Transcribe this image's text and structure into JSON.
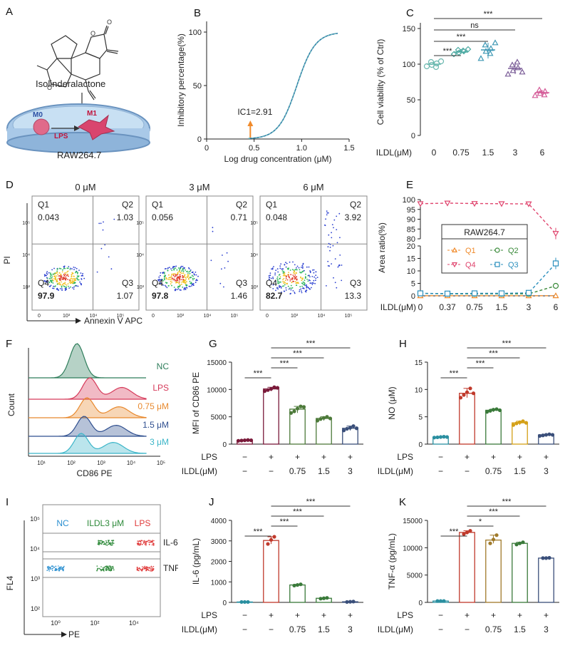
{
  "panel_labels": {
    "A": "A",
    "B": "B",
    "C": "C",
    "D": "D",
    "E": "E",
    "F": "F",
    "G": "G",
    "H": "H",
    "I": "I",
    "J": "J",
    "K": "K"
  },
  "panelA": {
    "compound": "Isolinderalactone",
    "m0": "M0",
    "m1": "M1",
    "lps": "LPS",
    "cell_line": "RAW264.7"
  },
  "chart_data": [
    {
      "id": "B",
      "type": "line",
      "xlabel": "Log drug concentration (μM)",
      "ylabel": "Inhibitory percentage(%)",
      "xlim": [
        0,
        1.5
      ],
      "ylim": [
        0,
        110
      ],
      "xticks": [
        "0",
        "0.5",
        "1.0",
        "1.5"
      ],
      "yticks": [
        "0",
        "50",
        "100"
      ],
      "annotation": "IC1=2.91",
      "annotation_x": 0.46,
      "curve": {
        "bottom": 0,
        "top": 100,
        "logEC50": 0.95,
        "hill": 4.5,
        "x_start": 0.44,
        "x_end": 1.38
      }
    },
    {
      "id": "C",
      "type": "scatter",
      "ylabel": "Cell viability (% of Ctrl)",
      "ylim": [
        0,
        150
      ],
      "yticks": [
        "0",
        "50",
        "100",
        "150"
      ],
      "row_label": "ILDL(μM)",
      "categories": [
        "0",
        "0.75",
        "1.5",
        "3",
        "6"
      ],
      "means": [
        100,
        117,
        120,
        94,
        60
      ],
      "points": [
        [
          97,
          99,
          101,
          103,
          96,
          104
        ],
        [
          114,
          116,
          118,
          120,
          119,
          121
        ],
        [
          108,
          118,
          122,
          127,
          115,
          130
        ],
        [
          86,
          91,
          95,
          99,
          103,
          89
        ],
        [
          56,
          59,
          62,
          64,
          57
        ]
      ],
      "colors": [
        "#6cb9b0",
        "#48a8a0",
        "#3d97b4",
        "#7a5c97",
        "#d45a97"
      ],
      "markers": [
        "circle",
        "diamond",
        "triangle",
        "triangle",
        "triangle"
      ],
      "sig": [
        {
          "from": 0,
          "to": 1,
          "label": "***"
        },
        {
          "from": 0,
          "to": 2,
          "label": "***"
        },
        {
          "from": 0,
          "to": 3,
          "label": "ns"
        },
        {
          "from": 0,
          "to": 4,
          "label": "***"
        }
      ]
    },
    {
      "id": "E",
      "type": "line",
      "ylabel": "Area ratio(%)",
      "row_label": "ILDL(μM)",
      "categories": [
        "0",
        "0.37",
        "0.75",
        "1.5",
        "3",
        "6"
      ],
      "yticks_low": [
        "0",
        "5",
        "10",
        "15",
        "20"
      ],
      "yticks_high": [
        "80",
        "85",
        "90",
        "95",
        "100"
      ],
      "legend_title": "RAW264.7",
      "series": [
        {
          "name": "Q1",
          "values": [
            0.05,
            0.05,
            0.05,
            0.05,
            0.05,
            0.05
          ],
          "color": "#f08a2b",
          "marker": "triangle"
        },
        {
          "name": "Q2",
          "values": [
            1.0,
            0.8,
            0.8,
            0.8,
            0.8,
            4.0
          ],
          "color": "#3a8a3a",
          "marker": "circle"
        },
        {
          "name": "Q4",
          "values": [
            97.9,
            98.2,
            98.0,
            97.9,
            97.8,
            82.7
          ],
          "color": "#e0456e",
          "marker": "triangle-down",
          "err": [
            0,
            0,
            0,
            0,
            0,
            3
          ]
        },
        {
          "name": "Q3",
          "values": [
            1.0,
            0.9,
            1.0,
            1.0,
            1.2,
            13.0
          ],
          "color": "#2a8fbd",
          "marker": "square",
          "err": [
            0,
            0,
            0,
            0,
            0,
            3
          ]
        }
      ]
    },
    {
      "id": "G",
      "type": "bar",
      "ylabel": "MFI of CD86 PE",
      "ylim": [
        0,
        15000
      ],
      "yticks": [
        "0",
        "5000",
        "10000",
        "15000"
      ],
      "values": [
        700,
        10100,
        6400,
        4700,
        2900
      ],
      "points": [
        [
          600,
          650,
          700,
          750,
          700
        ],
        [
          9700,
          9900,
          10100,
          10400,
          10300
        ],
        [
          5700,
          6000,
          6500,
          6900,
          6800
        ],
        [
          4300,
          4600,
          4800,
          5000,
          4700
        ],
        [
          2500,
          2800,
          3000,
          3300,
          2900
        ]
      ],
      "colors": [
        "#7a1a3a",
        "#7a1a3a",
        "#4d7a3a",
        "#4d7a3a",
        "#3a4f7a"
      ],
      "sig": [
        {
          "from": 0,
          "to": 1,
          "label": "***"
        },
        {
          "from": 1,
          "to": 2,
          "label": "***"
        },
        {
          "from": 1,
          "to": 3,
          "label": "***"
        },
        {
          "from": 1,
          "to": 4,
          "label": "***"
        }
      ],
      "row1_label": "LPS",
      "row1": [
        "−",
        "+",
        "+",
        "+",
        "+"
      ],
      "row2_label": "ILDL(μM)",
      "row2": [
        "−",
        "−",
        "0.75",
        "1.5",
        "3"
      ]
    },
    {
      "id": "H",
      "type": "bar",
      "ylabel": "NO (μM)",
      "ylim": [
        0,
        15
      ],
      "yticks": [
        "0",
        "5",
        "10",
        "15"
      ],
      "values": [
        1.3,
        9.3,
        6.2,
        3.9,
        1.7
      ],
      "points": [
        [
          1.2,
          1.25,
          1.3,
          1.35,
          1.3
        ],
        [
          8.5,
          9.0,
          9.5,
          10.2,
          9.3
        ],
        [
          5.9,
          6.1,
          6.3,
          6.4,
          6.2
        ],
        [
          3.5,
          3.8,
          4.0,
          4.2,
          3.9
        ],
        [
          1.5,
          1.6,
          1.7,
          1.8,
          1.7
        ]
      ],
      "colors": [
        "#2a8fa0",
        "#c0392b",
        "#3a7a3a",
        "#d4a017",
        "#3a4f7a"
      ],
      "sig": [
        {
          "from": 0,
          "to": 1,
          "label": "***"
        },
        {
          "from": 1,
          "to": 2,
          "label": "***"
        },
        {
          "from": 1,
          "to": 3,
          "label": "***"
        },
        {
          "from": 1,
          "to": 4,
          "label": "***"
        }
      ],
      "row1_label": "LPS",
      "row1": [
        "−",
        "+",
        "+",
        "+",
        "+"
      ],
      "row2_label": "ILDL(μM)",
      "row2": [
        "−",
        "−",
        "0.75",
        "1.5",
        "3"
      ]
    },
    {
      "id": "J",
      "type": "bar",
      "ylabel": "IL-6  (pg/mL)",
      "ylim": [
        0,
        4000
      ],
      "yticks": [
        "0",
        "1000",
        "2000",
        "3000",
        "4000"
      ],
      "values": [
        20,
        3020,
        850,
        200,
        30
      ],
      "points": [
        [
          20,
          20,
          20
        ],
        [
          2850,
          3050,
          3200
        ],
        [
          820,
          850,
          880
        ],
        [
          180,
          200,
          220
        ],
        [
          20,
          30,
          40
        ]
      ],
      "colors": [
        "#2a8fa0",
        "#c0392b",
        "#3a7a3a",
        "#3a7a3a",
        "#3a4f7a"
      ],
      "sig": [
        {
          "from": 0,
          "to": 1,
          "label": "***"
        },
        {
          "from": 1,
          "to": 2,
          "label": "***"
        },
        {
          "from": 1,
          "to": 3,
          "label": "***"
        },
        {
          "from": 1,
          "to": 4,
          "label": "***"
        }
      ],
      "row1_label": "LPS",
      "row1": [
        "−",
        "+",
        "+",
        "+",
        "+"
      ],
      "row2_label": "ILDL(μM)",
      "row2": [
        "−",
        "−",
        "0.75",
        "1.5",
        "3"
      ]
    },
    {
      "id": "K",
      "type": "bar",
      "ylabel": "TNF-α  (pg/mL)",
      "ylim": [
        0,
        15000
      ],
      "yticks": [
        "0",
        "5000",
        "10000",
        "15000"
      ],
      "values": [
        250,
        12800,
        11400,
        10800,
        8100
      ],
      "points": [
        [
          250,
          250,
          250
        ],
        [
          12500,
          12800,
          13100
        ],
        [
          10800,
          11500,
          12300
        ],
        [
          10600,
          10800,
          11000
        ],
        [
          8100,
          8100,
          8150
        ]
      ],
      "colors": [
        "#2a8fa0",
        "#c0392b",
        "#a07a2a",
        "#3a7a3a",
        "#3a4f7a"
      ],
      "sig": [
        {
          "from": 0,
          "to": 1,
          "label": "***"
        },
        {
          "from": 1,
          "to": 2,
          "label": "*"
        },
        {
          "from": 1,
          "to": 3,
          "label": "***"
        },
        {
          "from": 1,
          "to": 4,
          "label": "***"
        }
      ],
      "row1_label": "LPS",
      "row1": [
        "−",
        "+",
        "+",
        "+",
        "+"
      ],
      "row2_label": "ILDL(μM)",
      "row2": [
        "−",
        "−",
        "0.75",
        "1.5",
        "3"
      ]
    }
  ],
  "flowD": {
    "ylabel": "PI",
    "xlabel": "Annexin V  APC",
    "xticks": [
      "0",
      "10³",
      "10⁴",
      "10⁵"
    ],
    "yticks": [
      "10³",
      "10⁴",
      "10⁵"
    ],
    "plots": [
      {
        "title": "0 μM",
        "q1": "Q1",
        "q1v": "0.043",
        "q2": "Q2",
        "q2v": "1.03",
        "q3": "Q3",
        "q3v": "1.07",
        "q4": "Q4",
        "q4v": "97.9"
      },
      {
        "title": "3 μM",
        "q1": "Q1",
        "q1v": "0.056",
        "q2": "Q2",
        "q2v": "0.71",
        "q3": "Q3",
        "q3v": "1.46",
        "q4": "Q4",
        "q4v": "97.8"
      },
      {
        "title": "6 μM",
        "q1": "Q1",
        "q1v": "0.048",
        "q2": "Q2",
        "q2v": "3.92",
        "q3": "Q3",
        "q3v": "13.3",
        "q4": "Q4",
        "q4v": "82.7"
      }
    ]
  },
  "histF": {
    "ylabel": "Count",
    "xlabel": "CD86 PE",
    "xticks": [
      "10¹",
      "10²",
      "10³",
      "10⁴",
      "10⁵"
    ],
    "tracks": [
      {
        "label": "NC",
        "color": "#2e7d5b"
      },
      {
        "label": "LPS",
        "color": "#d63a5a"
      },
      {
        "label": "0.75 μM",
        "color": "#e8892e"
      },
      {
        "label": "1.5 μM",
        "color": "#2f4f8f"
      },
      {
        "label": "3 μM",
        "color": "#3bb5c8"
      }
    ]
  },
  "flowI": {
    "ylabel": "FL4",
    "xlabel": "PE",
    "xticks": [
      "10⁰",
      "10²",
      "10⁴"
    ],
    "yticks": [
      "10²",
      "10³",
      "10⁴",
      "10⁵"
    ],
    "group_labels": [
      {
        "text": "NC",
        "color": "#2a8fd0"
      },
      {
        "text": "ILDL3 μM",
        "color": "#2e8a3a"
      },
      {
        "text": "LPS",
        "color": "#e03a3a"
      }
    ],
    "band_labels": [
      "IL-6",
      "TNF"
    ]
  }
}
